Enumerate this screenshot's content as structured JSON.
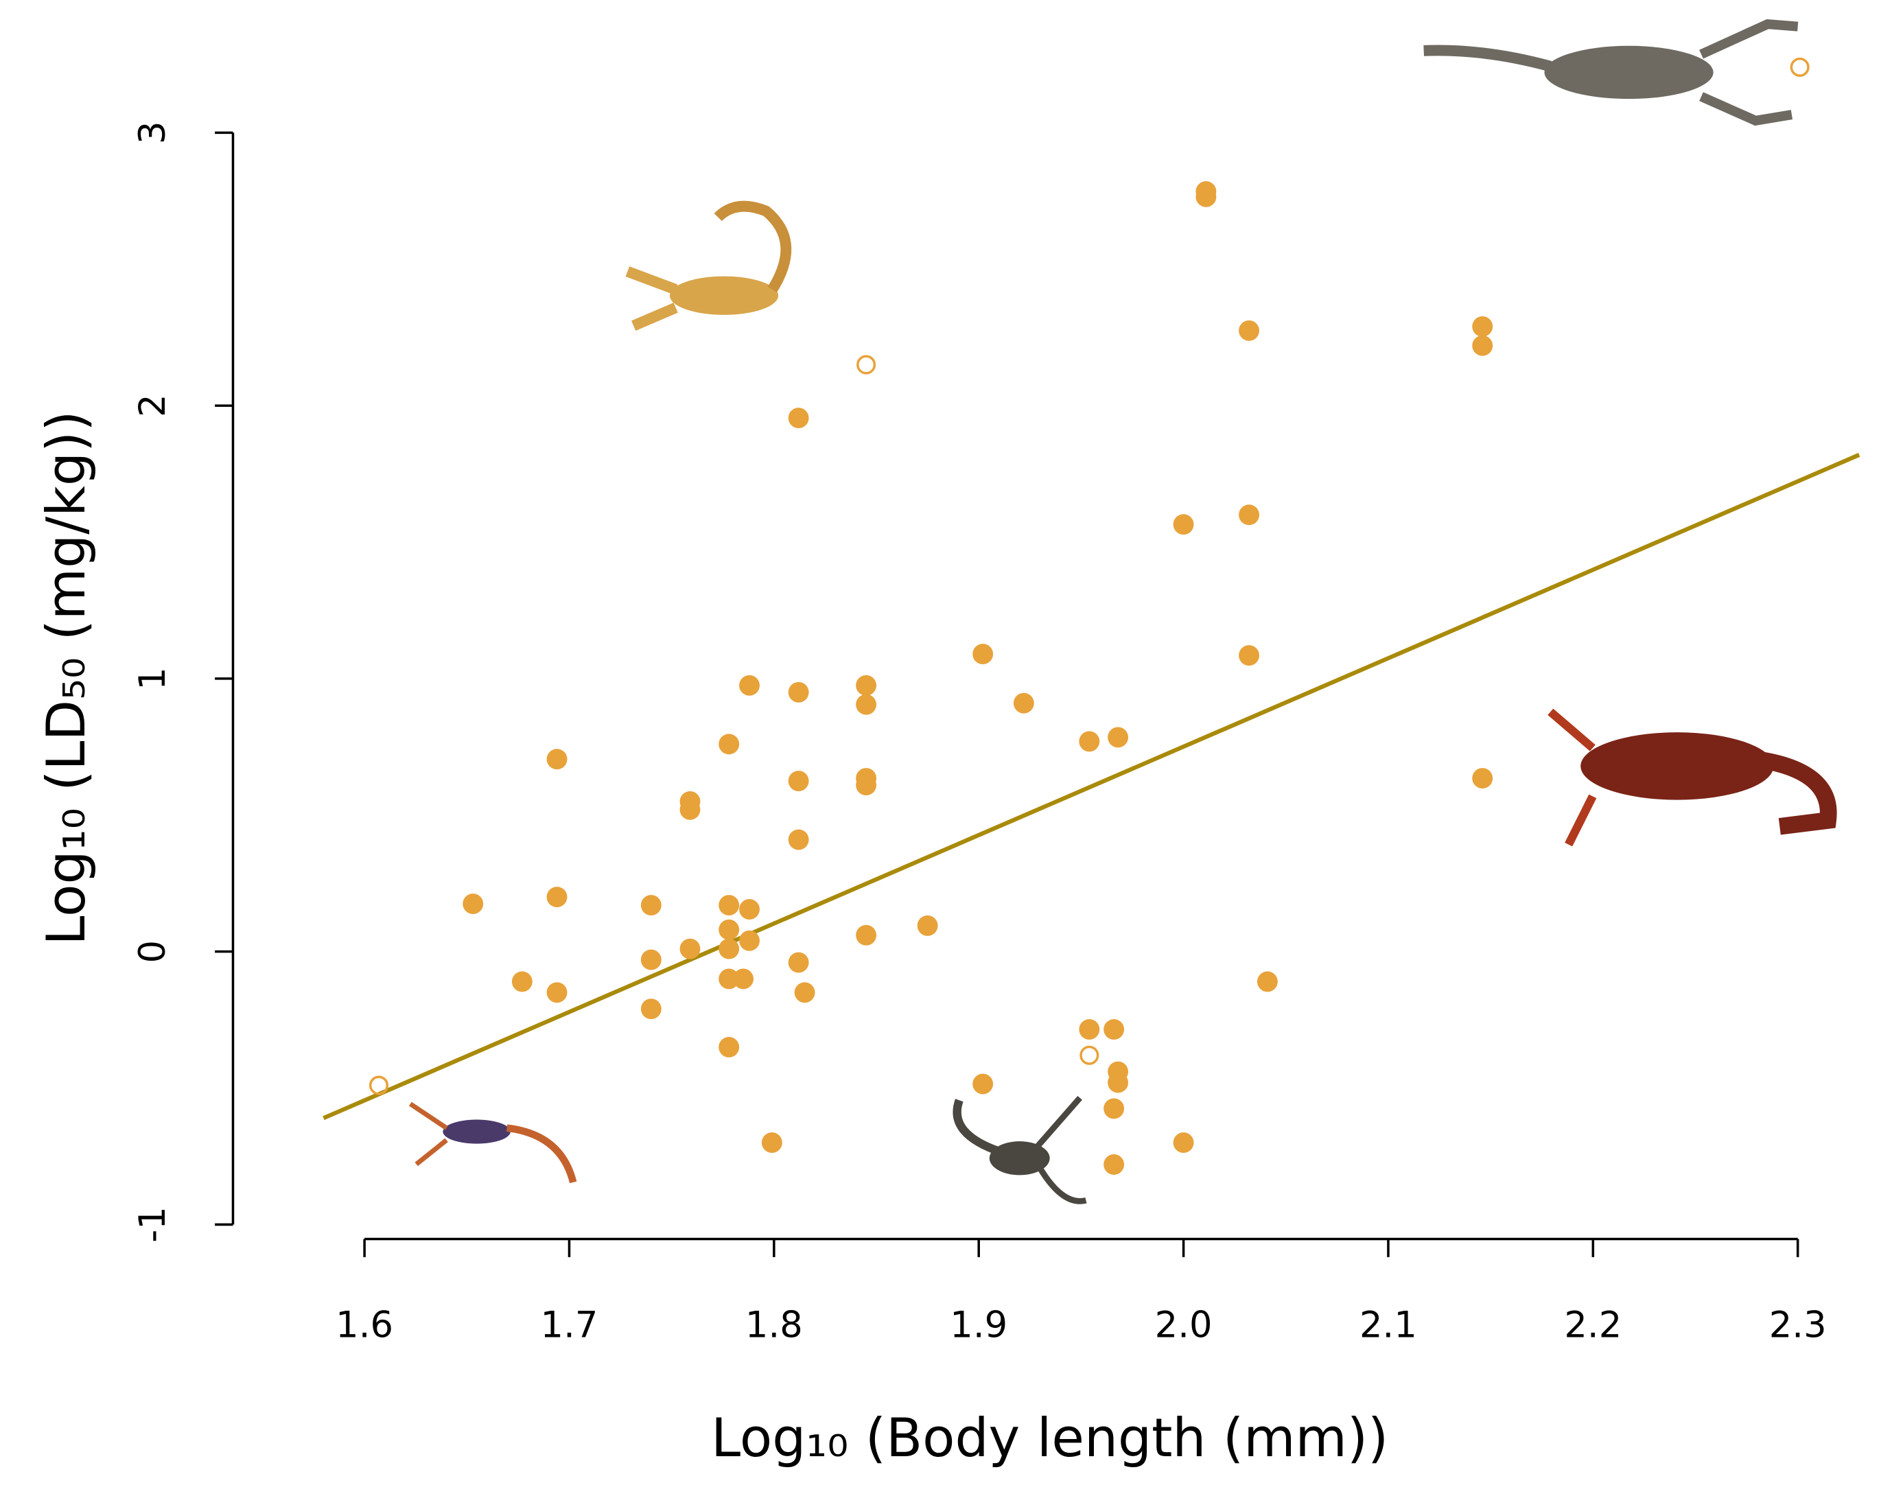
{
  "chart_data": {
    "type": "scatter",
    "xlabel": "Log₁₀ (Body length (mm))",
    "ylabel": "Log₁₀ (LD₅₀ (mg/kg))",
    "xlim": [
      1.6,
      2.3
    ],
    "ylim": [
      -1,
      3
    ],
    "xticks": [
      1.6,
      1.7,
      1.8,
      1.9,
      {
        "value": 2,
        "label": "2.0"
      },
      2.1,
      2.2,
      2.3
    ],
    "yticks": [
      -1,
      0,
      1,
      2,
      3
    ],
    "series": [
      {
        "marker": "filled",
        "color": "#e8a23a",
        "x": [
          1.653,
          1.677,
          1.694,
          1.694,
          1.694,
          1.74,
          1.74,
          1.74,
          1.759,
          1.759,
          1.759,
          1.778,
          1.778,
          1.778,
          1.778,
          1.778,
          1.778,
          1.785,
          1.788,
          1.788,
          1.788,
          1.799,
          1.812,
          1.812,
          1.812,
          1.812,
          1.812,
          1.815,
          1.845,
          1.845,
          1.845,
          1.845,
          1.845,
          1.875,
          1.902,
          1.902,
          1.922,
          1.954,
          1.954,
          1.966,
          1.968,
          1.968,
          1.968,
          1.966,
          1.966,
          2.0,
          2.0,
          2.011,
          2.011,
          2.032,
          2.032,
          2.032,
          2.041,
          2.146,
          2.146,
          2.146
        ],
        "y": [
          0.175,
          -0.11,
          0.705,
          0.2,
          -0.15,
          0.17,
          -0.03,
          -0.21,
          0.55,
          0.52,
          0.01,
          0.76,
          0.17,
          0.08,
          0.01,
          -0.1,
          -0.35,
          -0.1,
          0.975,
          0.155,
          0.04,
          -0.7,
          1.955,
          0.95,
          0.625,
          0.41,
          -0.04,
          -0.15,
          0.975,
          0.905,
          0.635,
          0.61,
          0.06,
          0.095,
          1.09,
          -0.485,
          0.91,
          0.77,
          -0.285,
          -0.285,
          0.785,
          -0.44,
          -0.48,
          -0.575,
          -0.78,
          1.565,
          -0.7,
          2.785,
          2.765,
          2.275,
          1.6,
          1.085,
          -0.11,
          2.29,
          2.22,
          0.635
        ]
      },
      {
        "marker": "open",
        "color": "#e8a23a",
        "x": [
          1.607,
          1.845,
          1.954,
          2.301
        ],
        "y": [
          -0.49,
          2.15,
          -0.38,
          3.24
        ]
      }
    ],
    "fit": {
      "color": "#a98a0a",
      "x": [
        1.58,
        2.33
      ],
      "y": [
        -0.61,
        1.82
      ]
    }
  }
}
